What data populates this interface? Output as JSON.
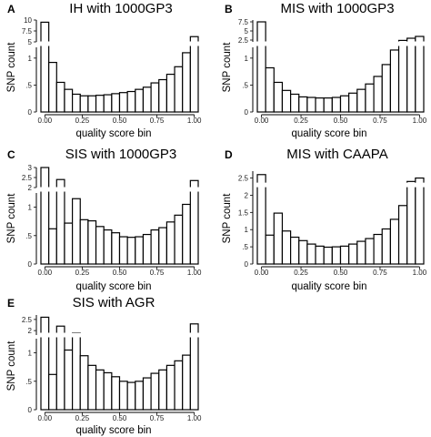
{
  "chart_data": [
    {
      "panel": "A",
      "type": "bar",
      "title": "IH with 1000GP3",
      "xlabel": "quality score bin",
      "ylabel": "SNP count",
      "xticks": [
        "0.00",
        "0.25",
        "0.50",
        "0.75",
        "1.00"
      ],
      "xlim": [
        0,
        1
      ],
      "bin_width": 0.05,
      "yticks_lower": [
        "0",
        ".5",
        "1"
      ],
      "yticks_upper": [
        "5",
        "7.5",
        "10"
      ],
      "broken_axis": {
        "lower_range": [
          0,
          1.2
        ],
        "upper_range": [
          5,
          10
        ]
      },
      "values": [
        9.5,
        0.92,
        0.55,
        0.42,
        0.33,
        0.3,
        0.3,
        0.31,
        0.32,
        0.34,
        0.36,
        0.38,
        0.42,
        0.46,
        0.54,
        0.6,
        0.7,
        0.84,
        1.1,
        6.2
      ]
    },
    {
      "panel": "B",
      "type": "bar",
      "title": "MIS with 1000GP3",
      "xlabel": "quality score bin",
      "ylabel": "SNP count",
      "xticks": [
        "0.00",
        "0.25",
        "0.50",
        "0.75",
        "1.00"
      ],
      "xlim": [
        0,
        1
      ],
      "bin_width": 0.05,
      "yticks_lower": [
        "0",
        ".5",
        "1"
      ],
      "yticks_upper": [
        "2.5",
        "5",
        "7.5"
      ],
      "broken_axis": {
        "lower_range": [
          0,
          1.2
        ],
        "upper_range": [
          2,
          8
        ]
      },
      "values": [
        7.5,
        0.82,
        0.55,
        0.4,
        0.33,
        0.28,
        0.27,
        0.26,
        0.26,
        0.27,
        0.3,
        0.35,
        0.42,
        0.52,
        0.66,
        0.88,
        1.15,
        2.4,
        3.0,
        3.5
      ]
    },
    {
      "panel": "C",
      "type": "bar",
      "title": "SIS with 1000GP3",
      "xlabel": "quality score bin",
      "ylabel": "SNP count",
      "xticks": [
        "0.00",
        "0.25",
        "0.50",
        "0.75",
        "1.00"
      ],
      "xlim": [
        0,
        1
      ],
      "bin_width": 0.05,
      "yticks_lower": [
        "0",
        ".5",
        "1"
      ],
      "yticks_upper": [
        "2",
        "2.5",
        "3"
      ],
      "broken_axis": {
        "lower_range": [
          0,
          1.25
        ],
        "upper_range": [
          2,
          3
        ]
      },
      "values": [
        3.0,
        0.62,
        2.4,
        0.72,
        1.15,
        0.78,
        0.76,
        0.66,
        0.6,
        0.55,
        0.48,
        0.47,
        0.48,
        0.52,
        0.6,
        0.64,
        0.74,
        0.86,
        1.05,
        2.35
      ]
    },
    {
      "panel": "D",
      "type": "bar",
      "title": "MIS with CAAPA",
      "xlabel": "quality score bin",
      "ylabel": "SNP count",
      "xticks": [
        "0.00",
        "0.25",
        "0.50",
        "0.75",
        "1.00"
      ],
      "xlim": [
        0,
        1
      ],
      "bin_width": 0.05,
      "yticks_lower": [
        "0",
        ".5",
        "1",
        "1.5",
        "2",
        "2.5"
      ],
      "broken_axis": {
        "lower_range": [
          0,
          2.7
        ],
        "break_at": 2.3
      },
      "values": [
        2.6,
        0.84,
        1.48,
        0.96,
        0.78,
        0.68,
        0.58,
        0.52,
        0.49,
        0.5,
        0.52,
        0.58,
        0.66,
        0.74,
        0.86,
        1.02,
        1.3,
        1.7,
        2.4,
        2.5
      ]
    },
    {
      "panel": "E",
      "type": "bar",
      "title": "SIS with AGR",
      "xlabel": "quality score bin",
      "ylabel": "SNP count",
      "xticks": [
        "0.00",
        "0.25",
        "0.50",
        "0.75",
        "1.00"
      ],
      "xlim": [
        0,
        1
      ],
      "bin_width": 0.05,
      "yticks_lower": [
        "0",
        ".5",
        "1"
      ],
      "yticks_upper": [
        "2",
        "2.5"
      ],
      "broken_axis": {
        "lower_range": [
          0,
          1.25
        ],
        "upper_range": [
          1.8,
          2.7
        ]
      },
      "values": [
        2.6,
        0.62,
        2.2,
        1.05,
        1.9,
        0.95,
        0.78,
        0.7,
        0.65,
        0.58,
        0.5,
        0.48,
        0.5,
        0.56,
        0.64,
        0.7,
        0.78,
        0.86,
        0.96,
        2.3
      ]
    }
  ]
}
